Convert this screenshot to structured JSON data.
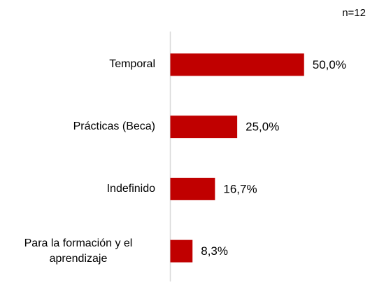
{
  "chart_data": {
    "type": "bar",
    "orientation": "horizontal",
    "note": "n=12",
    "categories": [
      "Temporal",
      "Prácticas (Beca)",
      "Indefinido",
      "Para la formación y el aprendizaje"
    ],
    "values": [
      50.0,
      25.0,
      16.7,
      8.3
    ],
    "value_labels": [
      "50,0%",
      "25,0%",
      "16,7%",
      "8,3%"
    ],
    "color": "#c00000",
    "xlim": [
      0,
      60
    ]
  }
}
